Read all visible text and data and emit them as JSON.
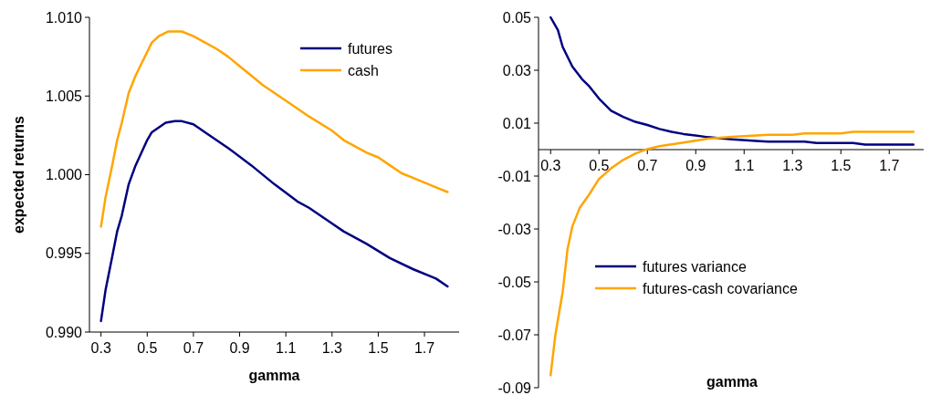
{
  "chart_data": [
    {
      "type": "line",
      "xlabel": "gamma",
      "ylabel": "expected returns",
      "legend": "top right",
      "xlim": [
        0.25,
        1.85
      ],
      "ylim": [
        0.99,
        1.01
      ],
      "xticks": [
        0.3,
        0.5,
        0.7,
        0.9,
        1.1,
        1.3,
        1.5,
        1.7
      ],
      "yticks": [
        {
          "value": 0.99,
          "label": "0.990"
        },
        {
          "value": 0.995,
          "label": "0.995"
        },
        {
          "value": 1.0,
          "label": "1.000"
        },
        {
          "value": 1.005,
          "label": "1.005"
        },
        {
          "value": 1.01,
          "label": "1.010"
        }
      ],
      "series": [
        {
          "name": "futures",
          "color": "#000080",
          "x": [
            0.3,
            0.32,
            0.35,
            0.37,
            0.39,
            0.42,
            0.45,
            0.5,
            0.52,
            0.55,
            0.58,
            0.62,
            0.65,
            0.7,
            0.75,
            0.85,
            0.95,
            1.05,
            1.15,
            1.2,
            1.3,
            1.35,
            1.45,
            1.55,
            1.65,
            1.75,
            1.8
          ],
          "values": [
            0.9907,
            0.9927,
            0.9949,
            0.9964,
            0.9974,
            0.9994,
            1.0006,
            1.0022,
            1.0027,
            1.003,
            1.0033,
            1.0034,
            1.0034,
            1.0032,
            1.0027,
            1.0017,
            1.0006,
            0.9994,
            0.9983,
            0.9979,
            0.9969,
            0.9964,
            0.9956,
            0.9947,
            0.994,
            0.9934,
            0.9929
          ]
        },
        {
          "name": "cash",
          "color": "#ffa500",
          "x": [
            0.3,
            0.32,
            0.35,
            0.37,
            0.39,
            0.42,
            0.45,
            0.48,
            0.52,
            0.55,
            0.59,
            0.65,
            0.7,
            0.75,
            0.8,
            0.85,
            0.9,
            0.95,
            1.0,
            1.05,
            1.15,
            1.2,
            1.3,
            1.35,
            1.45,
            1.5,
            1.55,
            1.6,
            1.65,
            1.75,
            1.8
          ],
          "values": [
            0.9967,
            0.9986,
            1.0007,
            1.0022,
            1.0033,
            1.0052,
            1.0063,
            1.0072,
            1.0084,
            1.0088,
            1.0091,
            1.0091,
            1.0088,
            1.0084,
            1.008,
            1.0075,
            1.0069,
            1.0063,
            1.0057,
            1.0052,
            1.0042,
            1.0037,
            1.0028,
            1.0022,
            1.0014,
            1.0011,
            1.0006,
            1.0001,
            0.9998,
            0.9992,
            0.9989
          ]
        }
      ]
    },
    {
      "type": "line",
      "xlabel": "gamma",
      "legend": "bottom left",
      "xlim": [
        0.25,
        1.85
      ],
      "ylim": [
        -0.09,
        0.05
      ],
      "xticks": [
        0.3,
        0.5,
        0.7,
        0.9,
        1.1,
        1.3,
        1.5,
        1.7
      ],
      "yticks": [
        -0.09,
        -0.07,
        -0.05,
        -0.03,
        -0.01,
        0.01,
        0.03,
        0.05
      ],
      "series": [
        {
          "name": "futures variance",
          "color": "#000080",
          "x": [
            0.3,
            0.33,
            0.35,
            0.39,
            0.43,
            0.46,
            0.5,
            0.55,
            0.6,
            0.65,
            0.7,
            0.75,
            0.8,
            0.85,
            0.95,
            1.05,
            1.15,
            1.2,
            1.35,
            1.4,
            1.55,
            1.6,
            1.8
          ],
          "values": [
            0.05,
            0.0452,
            0.0388,
            0.0314,
            0.0266,
            0.0239,
            0.0193,
            0.0147,
            0.0124,
            0.0105,
            0.0093,
            0.0078,
            0.0067,
            0.0059,
            0.0047,
            0.0039,
            0.0033,
            0.003,
            0.003,
            0.0025,
            0.0025,
            0.0019,
            0.0019
          ]
        },
        {
          "name": "futures-cash covariance",
          "color": "#ffa500",
          "x": [
            0.3,
            0.32,
            0.35,
            0.37,
            0.39,
            0.42,
            0.46,
            0.5,
            0.55,
            0.6,
            0.65,
            0.7,
            0.75,
            0.85,
            0.95,
            1.05,
            1.2,
            1.3,
            1.35,
            1.5,
            1.55,
            1.8
          ],
          "values": [
            -0.0853,
            -0.0698,
            -0.0537,
            -0.0376,
            -0.029,
            -0.0221,
            -0.0169,
            -0.0111,
            -0.0071,
            -0.0039,
            -0.0015,
            0.0002,
            0.0013,
            0.0027,
            0.0041,
            0.0048,
            0.0056,
            0.0056,
            0.0061,
            0.0061,
            0.0067,
            0.0067
          ]
        }
      ]
    }
  ]
}
